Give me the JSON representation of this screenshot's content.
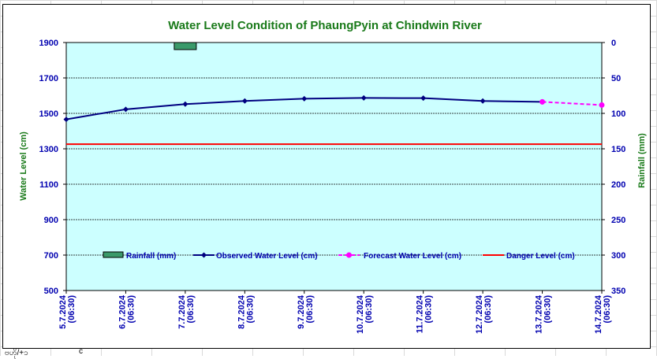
{
  "chart_data": {
    "type": "line",
    "title": "Water Level Condition of PhaungPyin at Chindwin River",
    "ylabel": "Water Level (cm)",
    "y2label": "Rainfall (mm)",
    "ylim": [
      500,
      1900
    ],
    "y2lim": [
      0,
      350
    ],
    "y2_reversed": true,
    "yticks": [
      "1900",
      "1700",
      "1500",
      "1300",
      "1100",
      "900",
      "700",
      "500"
    ],
    "y2ticks": [
      "0",
      "50",
      "100",
      "150",
      "200",
      "250",
      "300",
      "350"
    ],
    "x": [
      "5.7.2024 (06:30)",
      "6.7.2024 (06:30)",
      "7.7.2024 (06:30)",
      "8.7.2024 (06:30)",
      "9.7.2024 (06:30)",
      "10.7.2024 (06:30)",
      "11.7.2024 (06:30)",
      "12.7.2024 (06:30)",
      "13.7.2024 (06:30)",
      "14.7.2024 (06:30)"
    ],
    "x_lines": [
      [
        "5.7.2024",
        "(06:30)"
      ],
      [
        "6.7.2024",
        "(06:30)"
      ],
      [
        "7.7.2024",
        "(06:30)"
      ],
      [
        "8.7.2024",
        "(06:30)"
      ],
      [
        "9.7.2024",
        "(06:30)"
      ],
      [
        "10.7.2024",
        "(06:30)"
      ],
      [
        "11.7.2024",
        "(06:30)"
      ],
      [
        "12.7.2024",
        "(06:30)"
      ],
      [
        "13.7.2024",
        "(06:30)"
      ],
      [
        "14.7.2024",
        "(06:30)"
      ]
    ],
    "series": [
      {
        "name": "Rainfall (mm)",
        "type": "bar",
        "axis": "y2",
        "color": "#3a9a6a",
        "values": [
          null,
          null,
          10,
          null,
          null,
          null,
          null,
          null,
          null,
          null
        ]
      },
      {
        "name": "Observed Water Level (cm)",
        "type": "line",
        "axis": "y",
        "color": "#000080",
        "values": [
          1466,
          1523,
          1552,
          1570,
          1583,
          1587,
          1586,
          1570,
          1565,
          null
        ]
      },
      {
        "name": "Forecast Water Level (cm)",
        "type": "line",
        "axis": "y",
        "color": "#ff00ff",
        "dashed": true,
        "values": [
          null,
          null,
          null,
          null,
          null,
          null,
          null,
          null,
          1565,
          1547
        ]
      },
      {
        "name": "Danger Level (cm)",
        "type": "line",
        "axis": "y",
        "color": "#ff0000",
        "values": [
          1326,
          1326,
          1326,
          1326,
          1326,
          1326,
          1326,
          1326,
          1326,
          1326
        ]
      }
    ],
    "grid": true,
    "legend_position": "bottom-inside"
  },
  "footer": {
    "left": "ဗဟို/+၁",
    "right": "c"
  }
}
